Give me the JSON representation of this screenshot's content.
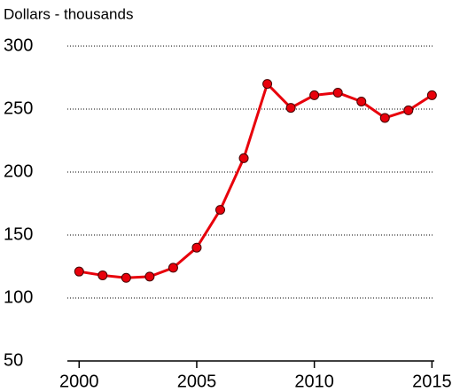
{
  "chart_data": {
    "type": "line",
    "subtitle": "Dollars - thousands",
    "x": [
      2000,
      2001,
      2002,
      2003,
      2004,
      2005,
      2006,
      2007,
      2008,
      2009,
      2010,
      2011,
      2012,
      2013,
      2014,
      2015
    ],
    "series": [
      {
        "name": null,
        "color": "#e8000b",
        "values": [
          121,
          118,
          116,
          117,
          124,
          140,
          170,
          211,
          270,
          251,
          261,
          263,
          256,
          243,
          249,
          261
        ]
      }
    ],
    "xlim": [
      1999.5,
      2015.1
    ],
    "xticks": [
      2000,
      2005,
      2010,
      2015
    ],
    "ylim": [
      50,
      300
    ],
    "yticks": [
      50,
      100,
      150,
      200,
      250,
      300
    ],
    "grid": true
  }
}
